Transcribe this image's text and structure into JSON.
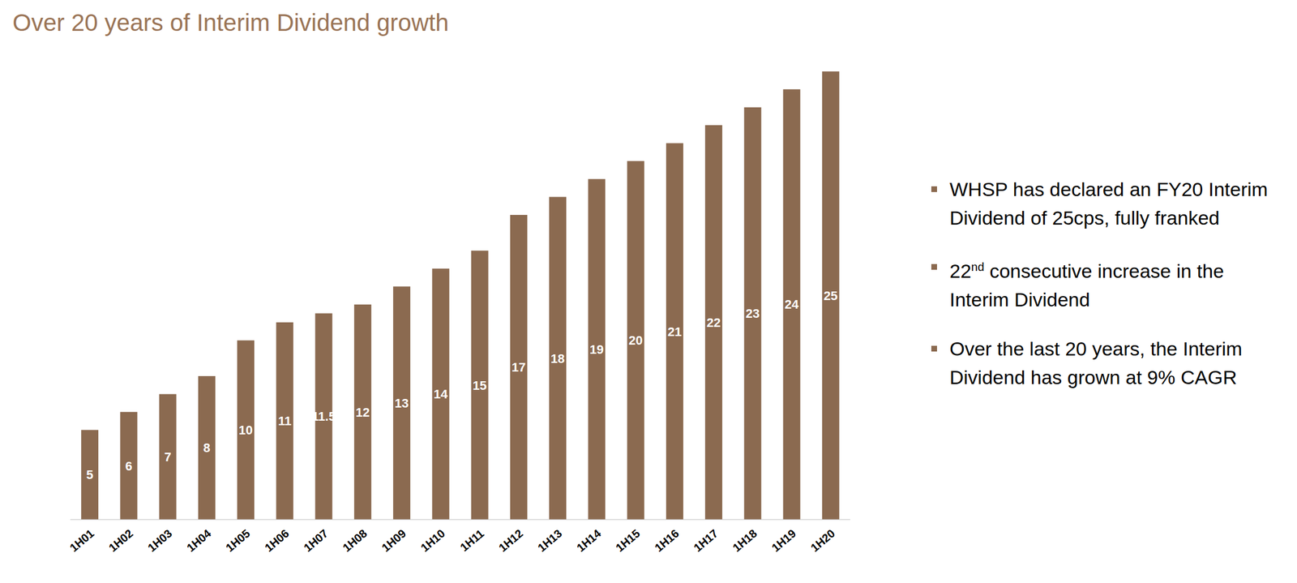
{
  "chart_data": {
    "type": "bar",
    "title": "Over 20 years of Interim Dividend growth",
    "categories": [
      "1H01",
      "1H02",
      "1H03",
      "1H04",
      "1H05",
      "1H06",
      "1H07",
      "1H08",
      "1H09",
      "1H10",
      "1H11",
      "1H12",
      "1H13",
      "1H14",
      "1H15",
      "1H16",
      "1H17",
      "1H18",
      "1H19",
      "1H20"
    ],
    "values": [
      5,
      6,
      7,
      8,
      10,
      11,
      11.5,
      12,
      13,
      14,
      15,
      17,
      18,
      19,
      20,
      21,
      22,
      23,
      24,
      25
    ],
    "color": "#8b6a50",
    "ylim": [
      0,
      25
    ],
    "data_labels": true,
    "tick_labels": "x",
    "grid": false,
    "annotations": [
      "WHSP has declared an FY20 Interim Dividend of 25cps, fully franked",
      "22nd consecutive increase in the Interim Dividend",
      "Over the last 20 years, the Interim Dividend has grown at 9% CAGR"
    ]
  }
}
